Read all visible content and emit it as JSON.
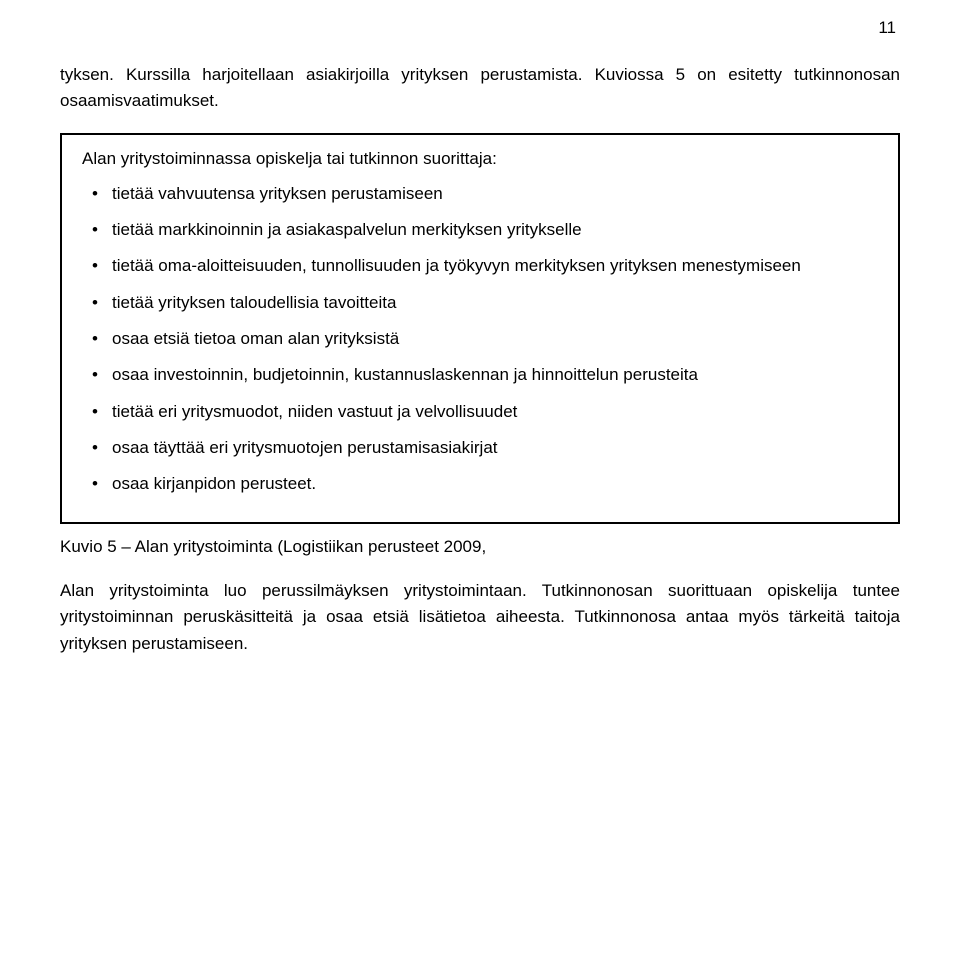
{
  "page_number": "11",
  "intro": "tyksen. Kurssilla harjoitellaan asiakirjoilla yrityksen perustamista. Kuviossa 5 on esitetty tutkinnonosan osaamisvaatimukset.",
  "box": {
    "heading": "Alan yritystoiminnassa opiskelja tai tutkinnon suorittaja:",
    "items": [
      "tietää vahvuutensa yrityksen perustamiseen",
      "tietää markkinoinnin ja asiakaspalvelun merkityksen yritykselle",
      "tietää oma-aloitteisuuden, tunnollisuuden ja työkyvyn merkityksen yrityksen menestymiseen",
      "tietää yrityksen taloudellisia tavoitteita",
      "osaa etsiä tietoa oman alan yrityksistä",
      "osaa investoinnin, budjetoinnin, kustannuslaskennan ja hinnoittelun perusteita",
      "tietää eri yritysmuodot, niiden vastuut ja velvollisuudet",
      "osaa täyttää eri yritysmuotojen perustamisasiakirjat",
      "osaa kirjanpidon perusteet."
    ]
  },
  "caption": "Kuvio 5 – Alan yritystoiminta (Logistiikan perusteet 2009,",
  "outro": "Alan yritystoiminta luo perussilmäyksen yritystoimintaan. Tutkinnonosan suorittuaan opiskelija tuntee yritystoiminnan peruskäsitteitä ja osaa etsiä lisätietoa aiheesta. Tutkinnonosa antaa myös tärkeitä taitoja yrityksen perustamiseen."
}
